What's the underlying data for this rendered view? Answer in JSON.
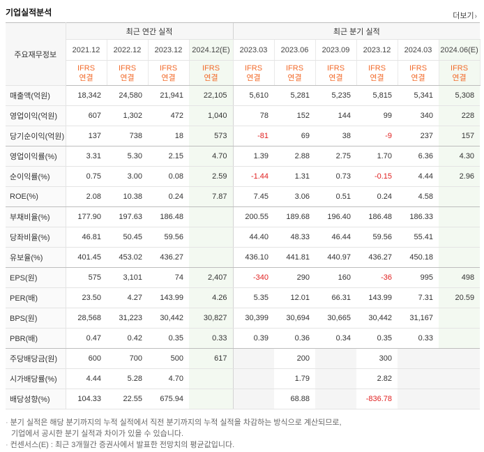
{
  "title": "기업실적분석",
  "more_label": "더보기",
  "header": {
    "row_label": "주요재무정보",
    "annual_group": "최근 연간 실적",
    "quarter_group": "최근 분기 실적",
    "periods": [
      "2021.12",
      "2022.12",
      "2023.12",
      "2024.12(E)",
      "2023.03",
      "2023.06",
      "2023.09",
      "2023.12",
      "2024.03",
      "2024.06(E)"
    ],
    "basis_line1": "IFRS",
    "basis_line2": "연결"
  },
  "rows": [
    {
      "label": "매출액(억원)",
      "values": [
        "18,342",
        "24,580",
        "21,941",
        "22,105",
        "5,610",
        "5,281",
        "5,235",
        "5,815",
        "5,341",
        "5,308"
      ]
    },
    {
      "label": "영업이익(억원)",
      "values": [
        "607",
        "1,302",
        "472",
        "1,040",
        "78",
        "152",
        "144",
        "99",
        "340",
        "228"
      ]
    },
    {
      "label": "당기순이익(억원)",
      "values": [
        "137",
        "738",
        "18",
        "573",
        "-81",
        "69",
        "38",
        "-9",
        "237",
        "157"
      ]
    },
    {
      "label": "영업이익률(%)",
      "values": [
        "3.31",
        "5.30",
        "2.15",
        "4.70",
        "1.39",
        "2.88",
        "2.75",
        "1.70",
        "6.36",
        "4.30"
      ]
    },
    {
      "label": "순이익률(%)",
      "values": [
        "0.75",
        "3.00",
        "0.08",
        "2.59",
        "-1.44",
        "1.31",
        "0.73",
        "-0.15",
        "4.44",
        "2.96"
      ]
    },
    {
      "label": "ROE(%)",
      "values": [
        "2.08",
        "10.38",
        "0.24",
        "7.87",
        "7.45",
        "3.06",
        "0.51",
        "0.24",
        "4.58",
        ""
      ]
    },
    {
      "label": "부채비율(%)",
      "values": [
        "177.90",
        "197.63",
        "186.48",
        "",
        "200.55",
        "189.68",
        "196.40",
        "186.48",
        "186.33",
        ""
      ]
    },
    {
      "label": "당좌비율(%)",
      "values": [
        "46.81",
        "50.45",
        "59.56",
        "",
        "44.40",
        "48.33",
        "46.44",
        "59.56",
        "55.41",
        ""
      ]
    },
    {
      "label": "유보율(%)",
      "values": [
        "401.45",
        "453.02",
        "436.27",
        "",
        "436.10",
        "441.81",
        "440.97",
        "436.27",
        "450.18",
        ""
      ]
    },
    {
      "label": "EPS(원)",
      "values": [
        "575",
        "3,101",
        "74",
        "2,407",
        "-340",
        "290",
        "160",
        "-36",
        "995",
        "498"
      ]
    },
    {
      "label": "PER(배)",
      "values": [
        "23.50",
        "4.27",
        "143.99",
        "4.26",
        "5.35",
        "12.01",
        "66.31",
        "143.99",
        "7.31",
        "20.59"
      ]
    },
    {
      "label": "BPS(원)",
      "values": [
        "28,568",
        "31,223",
        "30,442",
        "30,827",
        "30,399",
        "30,694",
        "30,665",
        "30,442",
        "31,167",
        ""
      ]
    },
    {
      "label": "PBR(배)",
      "values": [
        "0.47",
        "0.42",
        "0.35",
        "0.33",
        "0.39",
        "0.36",
        "0.34",
        "0.35",
        "0.33",
        ""
      ]
    },
    {
      "label": "주당배당금(원)",
      "values": [
        "600",
        "700",
        "500",
        "617",
        "",
        "200",
        "",
        "300",
        "",
        ""
      ]
    },
    {
      "label": "시가배당률(%)",
      "values": [
        "4.44",
        "5.28",
        "4.70",
        "",
        "",
        "1.79",
        "",
        "2.82",
        "",
        ""
      ]
    },
    {
      "label": "배당성향(%)",
      "values": [
        "104.33",
        "22.55",
        "675.94",
        "",
        "",
        "68.88",
        "",
        "-836.78",
        "",
        ""
      ]
    }
  ],
  "notes": {
    "line1": "분기 실적은 해당 분기까지의 누적 실적에서 직전 분기까지의 누적 실적을 차감하는 방식으로 계산되므로,",
    "line2": "기업에서 공시한 분기 실적과 차이가 있을 수 있습니다.",
    "line3": "컨센서스(E) : 최근 3개월간 증권사에서 발표한 전망치의 평균값입니다."
  },
  "colors": {
    "ifrs": "#f26a2a",
    "negative": "#e02020",
    "estimate_bg": "#f3f9f1"
  }
}
